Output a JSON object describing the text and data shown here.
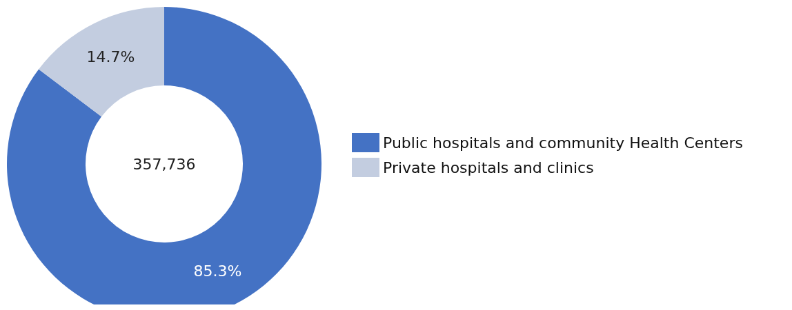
{
  "chart_data": {
    "type": "donut",
    "categories": [
      "Public hospitals and community Health Centers",
      "Private hospitals and clinics"
    ],
    "values": [
      85.3,
      14.7
    ],
    "colors": [
      "#4472c4",
      "#c3cde0"
    ],
    "value_labels": [
      "85.3%",
      "14.7%"
    ],
    "annotations": [
      "357,736"
    ],
    "legend": "right"
  }
}
